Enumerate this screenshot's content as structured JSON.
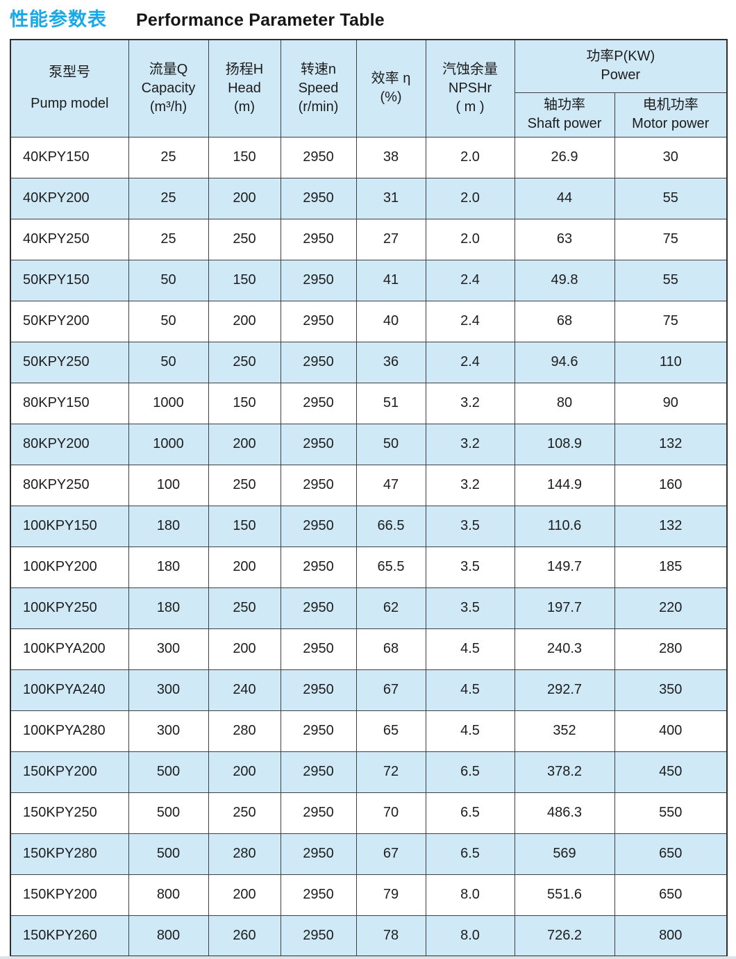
{
  "page_title": {
    "zh": "性能参数表",
    "en": "Performance Parameter Table"
  },
  "colors": {
    "accent_blue": "#19a8e8",
    "row_alt_blue": "#cfe9f6",
    "border": "#3f3f3f",
    "text": "#1d1d1d"
  },
  "table": {
    "columns": [
      {
        "zh": "泵型号",
        "en": "Pump model"
      },
      {
        "zh": "流量Q",
        "en": "Capacity",
        "unit": "(m³/h)"
      },
      {
        "zh": "扬程H",
        "en": "Head",
        "unit": "(m)"
      },
      {
        "zh": "转速n",
        "en": "Speed",
        "unit": "(r/min)"
      },
      {
        "zh": "效率 η",
        "unit": "(%)"
      },
      {
        "zh": "汽蚀余量",
        "en": "NPSHr",
        "unit": "( m )"
      }
    ],
    "power_group": {
      "zh": "功率P(KW)",
      "en": "Power",
      "sub": [
        {
          "zh": "轴功率",
          "en": "Shaft power"
        },
        {
          "zh": "电机功率",
          "en": "Motor power"
        }
      ]
    },
    "rows": [
      [
        "40KPY150",
        "25",
        "150",
        "2950",
        "38",
        "2.0",
        "26.9",
        "30"
      ],
      [
        "40KPY200",
        "25",
        "200",
        "2950",
        "31",
        "2.0",
        "44",
        "55"
      ],
      [
        "40KPY250",
        "25",
        "250",
        "2950",
        "27",
        "2.0",
        "63",
        "75"
      ],
      [
        "50KPY150",
        "50",
        "150",
        "2950",
        "41",
        "2.4",
        "49.8",
        "55"
      ],
      [
        "50KPY200",
        "50",
        "200",
        "2950",
        "40",
        "2.4",
        "68",
        "75"
      ],
      [
        "50KPY250",
        "50",
        "250",
        "2950",
        "36",
        "2.4",
        "94.6",
        "110"
      ],
      [
        "80KPY150",
        "1000",
        "150",
        "2950",
        "51",
        "3.2",
        "80",
        "90"
      ],
      [
        "80KPY200",
        "1000",
        "200",
        "2950",
        "50",
        "3.2",
        "108.9",
        "132"
      ],
      [
        "80KPY250",
        "100",
        "250",
        "2950",
        "47",
        "3.2",
        "144.9",
        "160"
      ],
      [
        "100KPY150",
        "180",
        "150",
        "2950",
        "66.5",
        "3.5",
        "110.6",
        "132"
      ],
      [
        "100KPY200",
        "180",
        "200",
        "2950",
        "65.5",
        "3.5",
        "149.7",
        "185"
      ],
      [
        "100KPY250",
        "180",
        "250",
        "2950",
        "62",
        "3.5",
        "197.7",
        "220"
      ],
      [
        "100KPYA200",
        "300",
        "200",
        "2950",
        "68",
        "4.5",
        "240.3",
        "280"
      ],
      [
        "100KPYA240",
        "300",
        "240",
        "2950",
        "67",
        "4.5",
        "292.7",
        "350"
      ],
      [
        "100KPYA280",
        "300",
        "280",
        "2950",
        "65",
        "4.5",
        "352",
        "400"
      ],
      [
        "150KPY200",
        "500",
        "200",
        "2950",
        "72",
        "6.5",
        "378.2",
        "450"
      ],
      [
        "150KPY250",
        "500",
        "250",
        "2950",
        "70",
        "6.5",
        "486.3",
        "550"
      ],
      [
        "150KPY280",
        "500",
        "280",
        "2950",
        "67",
        "6.5",
        "569",
        "650"
      ],
      [
        "150KPY200",
        "800",
        "200",
        "2950",
        "79",
        "8.0",
        "551.6",
        "650"
      ],
      [
        "150KPY260",
        "800",
        "260",
        "2950",
        "78",
        "8.0",
        "726.2",
        "800"
      ]
    ]
  }
}
